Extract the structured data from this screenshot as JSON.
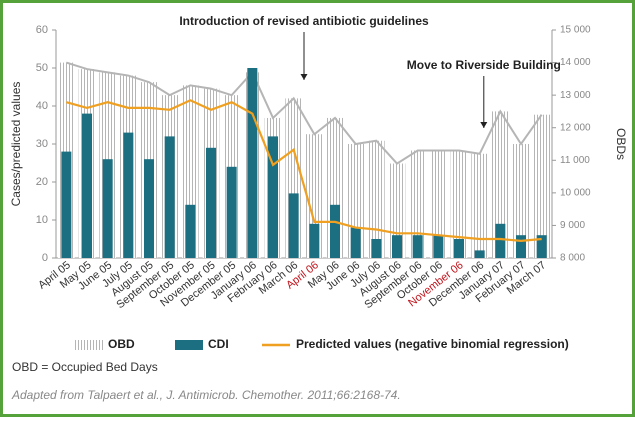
{
  "chart_data": {
    "type": "combo",
    "categories": [
      "April 05",
      "May 05",
      "June 05",
      "July 05",
      "August 05",
      "September 05",
      "October 05",
      "November 05",
      "December 05",
      "January 06",
      "February 06",
      "March 06",
      "April 06",
      "May 06",
      "June 06",
      "July 06",
      "August 06",
      "September 06",
      "October 06",
      "November 06",
      "December 06",
      "January 07",
      "February 07",
      "March 07"
    ],
    "category_colors": [
      "#333",
      "#333",
      "#333",
      "#333",
      "#333",
      "#333",
      "#333",
      "#333",
      "#333",
      "#333",
      "#333",
      "#333",
      "#c0131b",
      "#333",
      "#333",
      "#333",
      "#333",
      "#333",
      "#333",
      "#c0131b",
      "#333",
      "#333",
      "#333",
      "#333"
    ],
    "series": [
      {
        "name": "OBD",
        "type": "area",
        "axis": "y2",
        "color": "#b5b5b5",
        "values": [
          14000,
          13800,
          13700,
          13600,
          13400,
          13000,
          13300,
          13200,
          13000,
          13700,
          12300,
          12900,
          11800,
          12300,
          11500,
          11600,
          10900,
          11300,
          11300,
          11300,
          11200,
          12500,
          11500,
          12400
        ]
      },
      {
        "name": "CDI",
        "type": "bar",
        "color": "#1c6f80",
        "values": [
          28,
          38,
          26,
          33,
          26,
          32,
          14,
          29,
          24,
          50,
          32,
          17,
          9,
          14,
          8,
          5,
          6,
          6,
          6,
          5,
          2,
          9,
          6,
          6
        ]
      },
      {
        "name": "Predicted values (negative binomial regression)",
        "type": "line",
        "color": "#f0a020",
        "values": [
          41,
          39.5,
          41,
          39.5,
          39.5,
          39,
          41.5,
          39,
          41,
          38,
          24.5,
          28.5,
          9.5,
          9.5,
          8,
          7.5,
          6.5,
          6.5,
          6,
          5.5,
          5,
          5,
          4.5,
          5
        ]
      }
    ],
    "ylabel": "Cases/predicted values",
    "y2label": "OBDs",
    "ylim": [
      0,
      60
    ],
    "yticks": [
      0,
      10,
      20,
      30,
      40,
      50,
      60
    ],
    "y2lim": [
      8000,
      15000
    ],
    "y2ticks": [
      {
        "value": 8000,
        "label": "8 000"
      },
      {
        "value": 9000,
        "label": "9 000"
      },
      {
        "value": 10000,
        "label": "10 000"
      },
      {
        "value": 11000,
        "label": "11 000"
      },
      {
        "value": 12000,
        "label": "12 000"
      },
      {
        "value": 13000,
        "label": "13 000"
      },
      {
        "value": 14000,
        "label": "14 000"
      },
      {
        "value": 15000,
        "label": "15 000"
      }
    ],
    "annotations": [
      "Introduction of revised antibiotic guidelines",
      "Move to Riverside Building"
    ],
    "note": "OBD = Occupied Bed Days",
    "source": "Adapted from Talpaert et al., J. Antimicrob. Chemother. 2011;66:2168-74."
  }
}
